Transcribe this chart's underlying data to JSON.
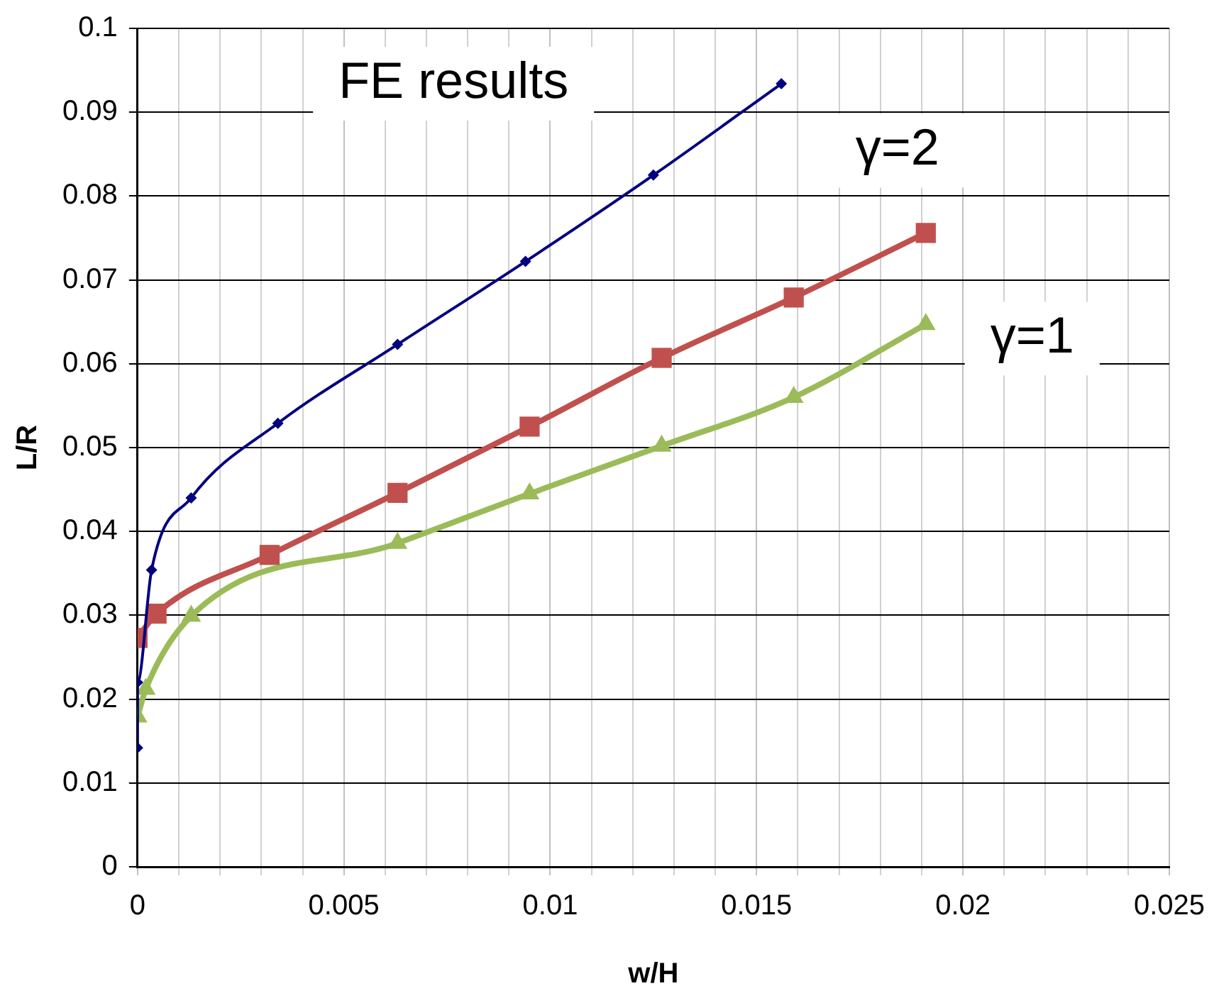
{
  "chart_data": {
    "type": "line",
    "xlabel": "w/H",
    "ylabel": "L/R",
    "xlim": [
      0,
      0.025
    ],
    "ylim": [
      0,
      0.1
    ],
    "xticks": [
      0,
      {
        "value": 0.001,
        "label": null
      },
      {
        "value": 0.002,
        "label": null
      },
      {
        "value": 0.003,
        "label": null
      },
      {
        "value": 0.004,
        "label": null
      },
      0.005,
      {
        "value": 0.006,
        "label": null
      },
      {
        "value": 0.007,
        "label": null
      },
      {
        "value": 0.008,
        "label": null
      },
      {
        "value": 0.009,
        "label": null
      },
      0.01,
      {
        "value": 0.011,
        "label": null
      },
      {
        "value": 0.012,
        "label": null
      },
      {
        "value": 0.013,
        "label": null
      },
      {
        "value": 0.014,
        "label": null
      },
      0.015,
      {
        "value": 0.016,
        "label": null
      },
      {
        "value": 0.017,
        "label": null
      },
      {
        "value": 0.018,
        "label": null
      },
      {
        "value": 0.019,
        "label": null
      },
      0.02,
      {
        "value": 0.021,
        "label": null
      },
      {
        "value": 0.022,
        "label": null
      },
      {
        "value": 0.023,
        "label": null
      },
      {
        "value": 0.024,
        "label": null
      },
      0.025
    ],
    "yticks": [
      0,
      0.01,
      0.02,
      0.03,
      0.04,
      0.05,
      0.06,
      0.07,
      0.08,
      0.09,
      0.1
    ],
    "grid": true,
    "legend": false,
    "line_style": "solid",
    "series": [
      {
        "name": "FE results",
        "color": "#000080",
        "marker": "diamond",
        "x": [
          0,
          0,
          0.00034,
          0.0013,
          0.0034,
          0.0063,
          0.0094,
          0.0125,
          0.0156
        ],
        "values": [
          0.0142,
          0.022,
          0.0354,
          0.044,
          0.0529,
          0.0623,
          0.0722,
          0.0825,
          0.0934
        ]
      },
      {
        "name": "γ=2",
        "color": "#c0504d",
        "marker": "square",
        "x": [
          0,
          0.00046,
          0.0032,
          0.0063,
          0.0095,
          0.0127,
          0.0159,
          0.0191
        ],
        "values": [
          0.0273,
          0.0302,
          0.0372,
          0.0446,
          0.0525,
          0.0607,
          0.0679,
          0.0756
        ]
      },
      {
        "name": "γ=1",
        "color": "#9bbb59",
        "marker": "triangle",
        "x": [
          0,
          0.0002,
          0.0013,
          0.0063,
          0.0095,
          0.0127,
          0.0159,
          0.0191
        ],
        "values": [
          0.0179,
          0.0212,
          0.0299,
          0.0386,
          0.0445,
          0.0502,
          0.056,
          0.0647
        ]
      }
    ]
  }
}
